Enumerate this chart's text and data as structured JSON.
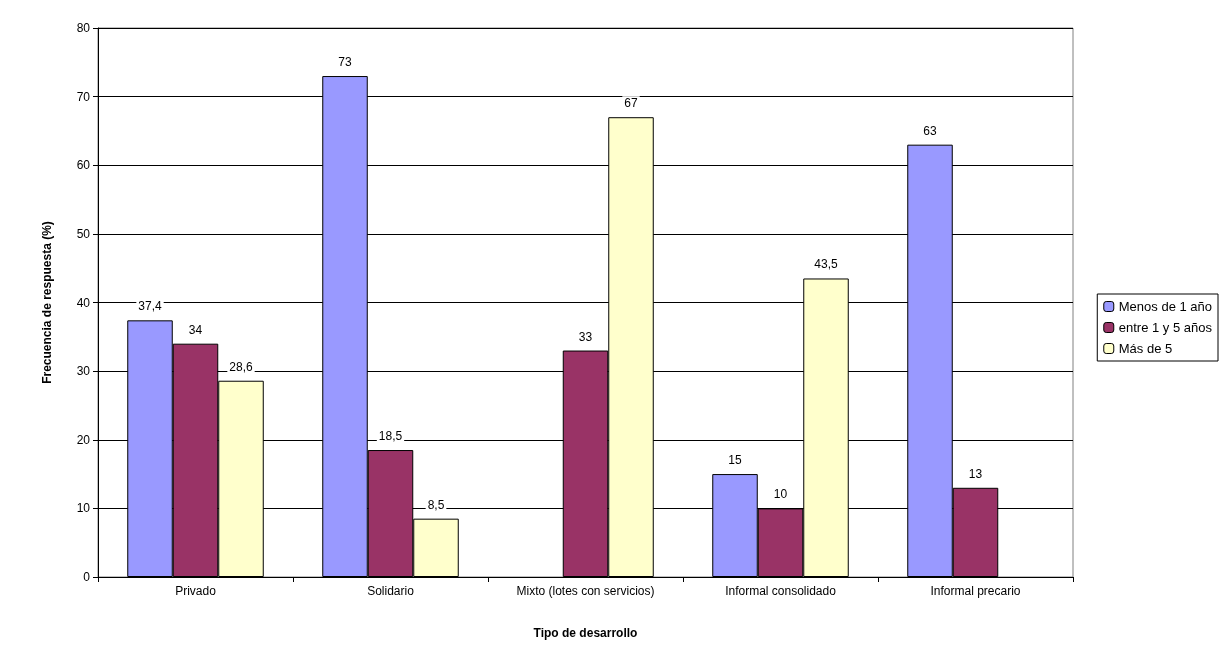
{
  "chart_data": {
    "type": "bar",
    "xlabel": "Tipo de desarrollo",
    "ylabel": "Frecuencia de respuesta (%)",
    "categories": [
      "Privado",
      "Solidario",
      "Mixto (lotes con servicios)",
      "Informal consolidado",
      "Informal precario"
    ],
    "series": [
      {
        "name": "Menos de 1 año",
        "color": "#9999ff",
        "values": [
          37.4,
          73,
          null,
          15,
          63
        ],
        "value_labels": [
          "37,4",
          "73",
          null,
          "15",
          "63"
        ]
      },
      {
        "name": "entre 1 y 5 años",
        "color": "#993366",
        "values": [
          34,
          18.5,
          33,
          10,
          13
        ],
        "value_labels": [
          "34",
          "18,5",
          "33",
          "10",
          "13"
        ]
      },
      {
        "name": "Más de 5",
        "color": "#ffffcc",
        "values": [
          28.6,
          8.5,
          67,
          43.5,
          null
        ],
        "value_labels": [
          "28,6",
          "8,5",
          "67",
          "43,5",
          null
        ]
      }
    ],
    "ylim": [
      0,
      80
    ],
    "yticks": [
      0,
      10,
      20,
      30,
      40,
      50,
      60,
      70,
      80
    ],
    "grid": "y",
    "legend": "right"
  }
}
